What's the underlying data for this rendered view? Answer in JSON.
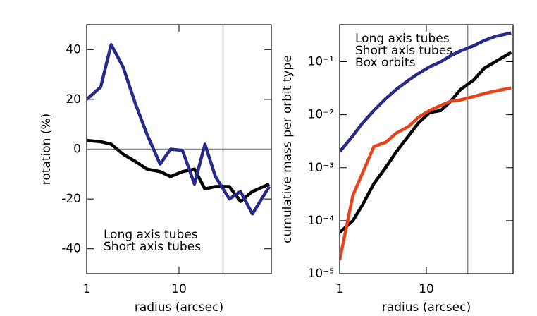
{
  "chart_data": [
    {
      "type": "line",
      "xlabel": "radius (arcsec)",
      "ylabel": "rotation (%)",
      "xlog": true,
      "xlim": [
        1,
        100
      ],
      "xticks": [
        1,
        10
      ],
      "ylim": [
        -50,
        50
      ],
      "yticks": [
        40,
        20,
        0,
        -20,
        -40
      ],
      "hlines": [
        0
      ],
      "vlines": [
        30
      ],
      "legend": "lower left",
      "x": [
        1,
        1.42,
        1.84,
        2.48,
        3.39,
        4.5,
        6.24,
        8.11,
        10.9,
        14.7,
        19.1,
        24.8,
        35.1,
        46.4,
        62.4,
        95
      ],
      "series": [
        {
          "name": "Long axis tubes",
          "color": "#000000",
          "values": [
            3.5,
            3,
            2,
            -2,
            -5,
            -8,
            -9,
            -11,
            -9,
            -8,
            -16,
            -15,
            -15,
            -21,
            -17,
            -14
          ]
        },
        {
          "name": "Short axis tubes",
          "color": "#262b8a",
          "values": [
            20,
            25,
            42,
            33,
            18,
            6,
            -6,
            0,
            -0.5,
            -14,
            2,
            -11,
            -20,
            -17,
            -26,
            -15
          ]
        }
      ]
    },
    {
      "type": "line",
      "xlabel": "radius (arcsec)",
      "ylabel": "cumulative mass per orbit type",
      "xlog": true,
      "ylog": true,
      "xlim": [
        1,
        100
      ],
      "xticks": [
        1,
        10
      ],
      "ylim": [
        1e-05,
        0.5
      ],
      "yticks": [
        {
          "value": 0.1,
          "label": "10⁻¹"
        },
        {
          "value": 0.01,
          "label": "10⁻²"
        },
        {
          "value": 0.001,
          "label": "10⁻³"
        },
        {
          "value": 0.0001,
          "label": "10⁻⁴"
        },
        {
          "value": 1e-05,
          "label": "10⁻⁵"
        }
      ],
      "vlines": [
        30
      ],
      "legend": "upper left",
      "x": [
        1,
        1.42,
        1.84,
        2.48,
        3.39,
        4.5,
        6.24,
        8.11,
        10.9,
        14.7,
        19.1,
        24.8,
        35.1,
        46.4,
        62.4,
        95
      ],
      "series": [
        {
          "name": "Long axis tubes",
          "color": "#000000",
          "values": [
            6e-05,
            0.0001,
            0.0002,
            0.0005,
            0.001,
            0.002,
            0.004,
            0.007,
            0.011,
            0.012,
            0.018,
            0.03,
            0.045,
            0.075,
            0.1,
            0.15
          ]
        },
        {
          "name": "Short axis tubes",
          "color": "#262b8a",
          "values": [
            0.002,
            0.004,
            0.007,
            0.012,
            0.02,
            0.03,
            0.045,
            0.06,
            0.08,
            0.1,
            0.13,
            0.16,
            0.2,
            0.25,
            0.3,
            0.35
          ]
        },
        {
          "name": "Box orbits",
          "color": "#e8421c",
          "values": [
            1.8e-05,
            0.0003,
            0.0008,
            0.0025,
            0.003,
            0.0045,
            0.006,
            0.009,
            0.012,
            0.015,
            0.018,
            0.019,
            0.022,
            0.025,
            0.028,
            0.032
          ]
        }
      ]
    }
  ]
}
